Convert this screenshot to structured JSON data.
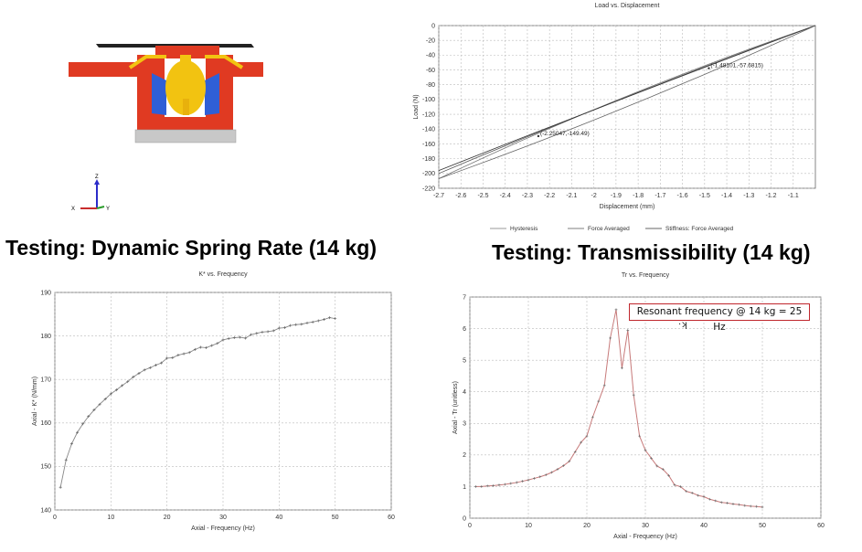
{
  "headings": {
    "dynamic_spring_rate": "Testing: Dynamic Spring Rate (14 kg)",
    "transmissibility": "Testing: Transmissibility (14 kg)"
  },
  "triad": {
    "x": "X",
    "y": "Y",
    "z": "Z"
  },
  "colors": {
    "housing_red": "#e03a22",
    "insert_yellow": "#f2c311",
    "insert_blue": "#2f5fd6",
    "plate_gray": "#c8c8c8",
    "annotation_red": "#c0262d",
    "tr_curve": "#c77a7a"
  },
  "annotation": {
    "resonance": "Resonant frequency @ 14 kg = 25 Hz",
    "cursor": "·ʞ"
  },
  "chart_data": [
    {
      "type": "line",
      "title": "Load vs. Displacement",
      "xlabel": "Displacement (mm)",
      "ylabel": "Load (N)",
      "xlim": [
        -2.7,
        -1.0
      ],
      "ylim": [
        -220,
        0
      ],
      "xticks": [
        -2.7,
        -2.6,
        -2.5,
        -2.4,
        -2.3,
        -2.2,
        -2.1,
        -2.0,
        -1.9,
        -1.8,
        -1.7,
        -1.6,
        -1.5,
        -1.4,
        -1.3,
        -1.2,
        -1.1
      ],
      "yticks": [
        0,
        -20,
        -40,
        -60,
        -80,
        -100,
        -120,
        -140,
        -160,
        -180,
        -200,
        -220
      ],
      "grid": true,
      "legend_position": "bottom",
      "series": [
        {
          "name": "Hysteresis",
          "x": [
            -2.7,
            -1.0
          ],
          "y": [
            -207,
            0
          ]
        },
        {
          "name": "Force Averaged",
          "x": [
            -2.7,
            -1.0
          ],
          "y": [
            -200,
            0
          ]
        },
        {
          "name": "Stiffness: Force Averaged",
          "x": [
            -2.7,
            -1.0
          ],
          "y": [
            -196,
            0
          ]
        }
      ],
      "annotations": [
        {
          "x": -1.48101,
          "y": -57.6815,
          "text": "(-1.48101,-57.6815)"
        },
        {
          "x": -2.25047,
          "y": -149.49,
          "text": "(-2.25047,-149.49)"
        }
      ]
    },
    {
      "type": "line",
      "title": "K* vs. Frequency",
      "xlabel": "Axial - Frequency (Hz)",
      "ylabel": "Axial - K* (N/mm)",
      "xlim": [
        0,
        60
      ],
      "ylim": [
        140,
        190
      ],
      "xticks": [
        0,
        10,
        20,
        30,
        40,
        50,
        60
      ],
      "yticks": [
        140,
        150,
        160,
        170,
        180,
        190
      ],
      "grid": true,
      "series": [
        {
          "x": [
            1,
            2,
            3,
            4,
            5,
            6,
            7,
            8,
            9,
            10,
            11,
            12,
            13,
            14,
            15,
            16,
            17,
            18,
            19,
            20,
            21,
            22,
            23,
            24,
            25,
            26,
            27,
            28,
            29,
            30,
            31,
            32,
            33,
            34,
            35,
            36,
            37,
            38,
            39,
            40,
            41,
            42,
            43,
            44,
            45,
            46,
            47,
            48,
            49,
            50
          ],
          "y": [
            145.2,
            151.5,
            155.2,
            157.8,
            159.8,
            161.5,
            163.0,
            164.3,
            165.5,
            166.7,
            167.6,
            168.6,
            169.5,
            170.6,
            171.4,
            172.2,
            172.7,
            173.3,
            173.8,
            174.9,
            175.0,
            175.6,
            175.9,
            176.2,
            176.9,
            177.4,
            177.3,
            177.8,
            178.3,
            179.1,
            179.4,
            179.6,
            179.7,
            179.5,
            180.3,
            180.6,
            180.9,
            181.0,
            181.2,
            181.8,
            181.9,
            182.4,
            182.6,
            182.7,
            183.0,
            183.2,
            183.5,
            183.8,
            184.2,
            184.0
          ]
        }
      ]
    },
    {
      "type": "line",
      "title": "Tr vs. Frequency",
      "xlabel": "Axial - Frequency (Hz)",
      "ylabel": "Axial - Tr (unitless)",
      "xlim": [
        0,
        60
      ],
      "ylim": [
        0,
        7
      ],
      "xticks": [
        0,
        10,
        20,
        30,
        40,
        50,
        60
      ],
      "yticks": [
        0,
        1,
        2,
        3,
        4,
        5,
        6,
        7
      ],
      "grid": true,
      "series": [
        {
          "x": [
            1,
            2,
            3,
            4,
            5,
            6,
            7,
            8,
            9,
            10,
            11,
            12,
            13,
            14,
            15,
            16,
            17,
            18,
            19,
            20,
            21,
            22,
            23,
            24,
            25,
            26,
            27,
            28,
            29,
            30,
            31,
            32,
            33,
            34,
            35,
            36,
            37,
            38,
            39,
            40,
            41,
            42,
            43,
            44,
            45,
            46,
            47,
            48,
            49,
            50
          ],
          "y": [
            1.0,
            1.0,
            1.02,
            1.03,
            1.05,
            1.07,
            1.1,
            1.13,
            1.17,
            1.21,
            1.26,
            1.31,
            1.37,
            1.45,
            1.55,
            1.66,
            1.8,
            2.1,
            2.4,
            2.6,
            3.2,
            3.7,
            4.2,
            5.7,
            6.6,
            4.75,
            5.95,
            3.9,
            2.6,
            2.15,
            1.9,
            1.65,
            1.55,
            1.35,
            1.05,
            1.0,
            0.85,
            0.8,
            0.72,
            0.68,
            0.6,
            0.55,
            0.5,
            0.48,
            0.45,
            0.43,
            0.4,
            0.38,
            0.37,
            0.35
          ]
        }
      ]
    }
  ]
}
